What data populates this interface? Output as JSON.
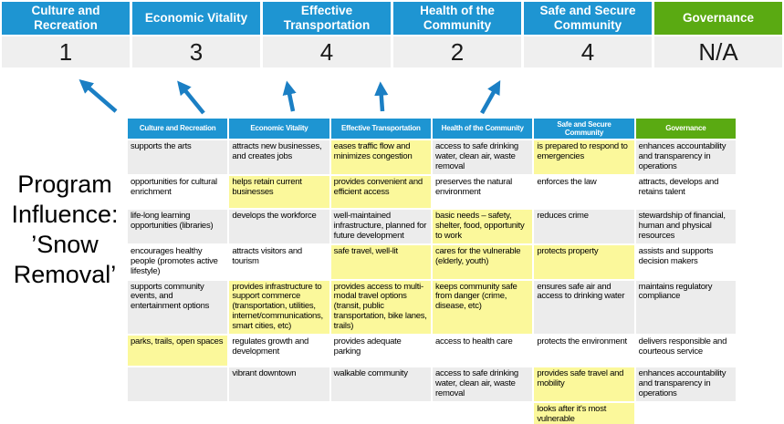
{
  "title": {
    "lines": [
      "Program",
      "Influence:",
      "’Snow",
      "Removal’"
    ]
  },
  "colors": {
    "header_blue": "#1E95D2",
    "governance_green": "#5AAA12",
    "highlight_yellow": "#FBF89B",
    "band_gray": "#ECECEC",
    "score_bg": "#EFEFEF",
    "arrow_blue": "#1B7FC4"
  },
  "scoreboard": {
    "priorities": [
      {
        "label": "Culture and Recreation",
        "score": "1",
        "theme": "blue"
      },
      {
        "label": "Economic Vitality",
        "score": "3",
        "theme": "blue"
      },
      {
        "label": "Effective Transportation",
        "score": "4",
        "theme": "blue"
      },
      {
        "label": "Health of the Community",
        "score": "2",
        "theme": "blue"
      },
      {
        "label": "Safe and Secure Community",
        "score": "4",
        "theme": "blue"
      },
      {
        "label": "Governance",
        "score": "N/A",
        "theme": "green"
      }
    ]
  },
  "matrix": {
    "columns": [
      {
        "label": "Culture and Recreation",
        "theme": "blue"
      },
      {
        "label": "Economic Vitality",
        "theme": "blue"
      },
      {
        "label": "Effective Transportation",
        "theme": "blue"
      },
      {
        "label": "Health of the Community",
        "theme": "blue"
      },
      {
        "label": "Safe and Secure\nCommunity",
        "theme": "blue"
      },
      {
        "label": "Governance",
        "theme": "green"
      }
    ],
    "rows": [
      {
        "cells": [
          {
            "text": "supports the arts",
            "highlight": false
          },
          {
            "text": "attracts new businesses, and creates jobs",
            "highlight": false
          },
          {
            "text": "eases traffic flow and minimizes congestion",
            "highlight": true
          },
          {
            "text": "access to safe drinking water, clean air, waste removal",
            "highlight": false
          },
          {
            "text": "is prepared to respond to emergencies",
            "highlight": true
          },
          {
            "text": "enhances accountability and transparency in operations",
            "highlight": false
          }
        ]
      },
      {
        "cells": [
          {
            "text": "opportunities for cultural enrichment",
            "highlight": false
          },
          {
            "text": "helps retain current businesses",
            "highlight": true
          },
          {
            "text": "provides convenient and efficient access",
            "highlight": true
          },
          {
            "text": "preserves the natural environment",
            "highlight": false
          },
          {
            "text": "enforces the law",
            "highlight": false
          },
          {
            "text": "attracts, develops and retains talent",
            "highlight": false
          }
        ]
      },
      {
        "cells": [
          {
            "text": "life-long learning opportunities (libraries)",
            "highlight": false
          },
          {
            "text": "develops the workforce",
            "highlight": false
          },
          {
            "text": "well-maintained infrastructure, planned for future development",
            "highlight": false
          },
          {
            "text": "basic needs – safety, shelter, food, opportunity to work",
            "highlight": true
          },
          {
            "text": "reduces crime",
            "highlight": false
          },
          {
            "text": "stewardship of financial, human and physical resources",
            "highlight": false
          }
        ]
      },
      {
        "cells": [
          {
            "text": "encourages healthy people (promotes active lifestyle)",
            "highlight": false
          },
          {
            "text": "attracts visitors and tourism",
            "highlight": false
          },
          {
            "text": "safe travel, well-lit",
            "highlight": true
          },
          {
            "text": "cares for the vulnerable (elderly, youth)",
            "highlight": true
          },
          {
            "text": "protects property",
            "highlight": true
          },
          {
            "text": "assists and supports decision makers",
            "highlight": false
          }
        ]
      },
      {
        "cells": [
          {
            "text": "supports community events, and entertainment options",
            "highlight": false
          },
          {
            "text": "provides infrastructure to support commerce (transportation, utilities, internet/communications, smart cities, etc)",
            "highlight": true
          },
          {
            "text": "provides access to multi-modal travel options (transit, public transportation, bike lanes, trails)",
            "highlight": true
          },
          {
            "text": "keeps community safe from danger (crime, disease, etc)",
            "highlight": true
          },
          {
            "text": "ensures safe air and access to drinking water",
            "highlight": false
          },
          {
            "text": "maintains regulatory compliance",
            "highlight": false
          }
        ]
      },
      {
        "cells": [
          {
            "text": "parks, trails, open spaces",
            "highlight": true
          },
          {
            "text": "regulates growth and development",
            "highlight": false
          },
          {
            "text": "provides adequate parking",
            "highlight": false
          },
          {
            "text": "access to health care",
            "highlight": false
          },
          {
            "text": "protects the environment",
            "highlight": false
          },
          {
            "text": "delivers responsible and courteous service",
            "highlight": false
          }
        ]
      },
      {
        "cells": [
          {
            "text": "",
            "highlight": false
          },
          {
            "text": "vibrant downtown",
            "highlight": false
          },
          {
            "text": "walkable community",
            "highlight": false
          },
          {
            "text": "access to safe drinking water, clean air, waste removal",
            "highlight": false
          },
          {
            "text": "provides safe travel and mobility",
            "highlight": true
          },
          {
            "text": "enhances accountability and transparency in operations",
            "highlight": false
          }
        ]
      },
      {
        "cells": [
          {
            "text": "",
            "highlight": false
          },
          {
            "text": "",
            "highlight": false
          },
          {
            "text": "",
            "highlight": false
          },
          {
            "text": "",
            "highlight": false
          },
          {
            "text": "looks after it's most vulnerable",
            "highlight": true
          },
          {
            "text": "",
            "highlight": false
          }
        ]
      }
    ]
  }
}
